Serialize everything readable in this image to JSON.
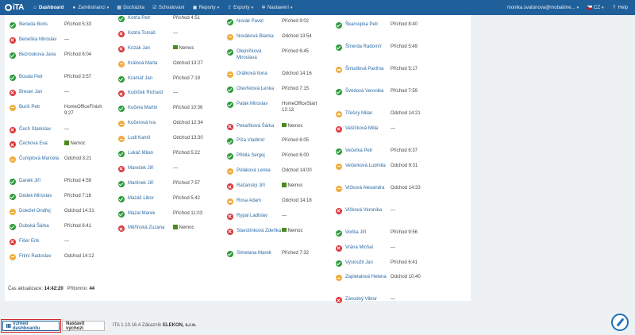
{
  "nav": {
    "logo": "iTA",
    "items": [
      {
        "label": "Dashboard",
        "icon": "home-icon",
        "glyph": "⌂",
        "caret": false
      },
      {
        "label": "Zaměstnanci",
        "icon": "user-icon",
        "glyph": "●",
        "caret": true
      },
      {
        "label": "Docházka",
        "icon": "calendar-icon",
        "glyph": "▦",
        "caret": false
      },
      {
        "label": "Schvalování",
        "icon": "check-square-icon",
        "glyph": "☑",
        "caret": false
      },
      {
        "label": "Reporty",
        "icon": "print-icon",
        "glyph": "▣",
        "caret": true
      },
      {
        "label": "Exporty",
        "icon": "export-icon",
        "glyph": "⇪",
        "caret": true
      },
      {
        "label": "Nastavení",
        "icon": "gear-icon",
        "glyph": "✲",
        "caret": true
      }
    ],
    "user": "monika.svatonova@mobatime...",
    "language": "CZ",
    "help": "Help"
  },
  "columns": [
    [
      {
        "name": "Beneda Boris",
        "status": "ok",
        "value": "Příchod 5:33",
        "tall": false,
        "sick": false
      },
      {
        "name": "Beneška Miroslav",
        "status": "no",
        "value": "—",
        "tall": false,
        "sick": false
      },
      {
        "name": "Bezroukova Jana",
        "status": "ok",
        "value": "Příchod 6:04",
        "tall": true,
        "sick": false
      },
      {
        "name": "Bouda Petr",
        "status": "ok",
        "value": "Příchod 3:57",
        "tall": false,
        "sick": false
      },
      {
        "name": "Breuer Jan",
        "status": "no",
        "value": "—",
        "tall": false,
        "sick": false
      },
      {
        "name": "Buriš Petr",
        "status": "wa",
        "value": "HomeOfficeFinish 9:27",
        "tall": true,
        "sick": false
      },
      {
        "name": "Čech Stanislav",
        "status": "no",
        "value": "—",
        "tall": false,
        "sick": false
      },
      {
        "name": "Čechová Eva",
        "status": "no",
        "value": "Nemoc",
        "tall": false,
        "sick": true
      },
      {
        "name": "Čumplová Marcela",
        "status": "wa",
        "value": "Odchod 3:21",
        "tall": true,
        "sick": false
      },
      {
        "name": "Daněk Jiří",
        "status": "ok",
        "value": "Příchod 4:59",
        "tall": false,
        "sick": false
      },
      {
        "name": "Dedek Miroslav",
        "status": "ok",
        "value": "Příchod 7:16",
        "tall": false,
        "sick": false
      },
      {
        "name": "Doležel Ondřej",
        "status": "wa",
        "value": "Odchod 14:31",
        "tall": false,
        "sick": false
      },
      {
        "name": "Dubská Šárka",
        "status": "ok",
        "value": "Příchod 6:41",
        "tall": false,
        "sick": false
      },
      {
        "name": "Fišer Erik",
        "status": "no",
        "value": "—",
        "tall": false,
        "sick": false
      },
      {
        "name": "Frimí Radoslav",
        "status": "wa",
        "value": "Odchod 14:12",
        "tall": false,
        "sick": false
      }
    ],
    [
      {
        "name": "Kotrla Petr",
        "status": "ok",
        "value": "Příchod 4:51",
        "tall": false,
        "sick": false
      },
      {
        "name": "Kotrla Tomáš",
        "status": "no",
        "value": "—",
        "tall": false,
        "sick": false
      },
      {
        "name": "Kozák Jan",
        "status": "no",
        "value": "Nemoc",
        "tall": false,
        "sick": true
      },
      {
        "name": "Králová Marta",
        "status": "wa",
        "value": "Odchod 13:27",
        "tall": false,
        "sick": false
      },
      {
        "name": "Kramář Jan",
        "status": "ok",
        "value": "Příchod 7:19",
        "tall": false,
        "sick": false
      },
      {
        "name": "Kubíček Richard",
        "status": "no",
        "value": "—",
        "tall": false,
        "sick": false
      },
      {
        "name": "Kučera Martin",
        "status": "ok",
        "value": "Příchod 10:36",
        "tall": false,
        "sick": false
      },
      {
        "name": "Kučerová Iva",
        "status": "wa",
        "value": "Odchod 12:34",
        "tall": false,
        "sick": false
      },
      {
        "name": "Ludl Kamil",
        "status": "wa",
        "value": "Odchod 13:30",
        "tall": false,
        "sick": false
      },
      {
        "name": "Lukáč Milan",
        "status": "ok",
        "value": "Příchod 5:22",
        "tall": false,
        "sick": false
      },
      {
        "name": "Mareček Jiří",
        "status": "no",
        "value": "—",
        "tall": false,
        "sick": false
      },
      {
        "name": "Martinek Jiří",
        "status": "ok",
        "value": "Příchod 7:57",
        "tall": false,
        "sick": false
      },
      {
        "name": "Mazáč Libor",
        "status": "ok",
        "value": "Příchod 5:42",
        "tall": false,
        "sick": false
      },
      {
        "name": "Mazal Marek",
        "status": "ok",
        "value": "Příchod 11:03",
        "tall": false,
        "sick": false
      },
      {
        "name": "Měřínská Zuzana",
        "status": "no",
        "value": "Nemoc",
        "tall": false,
        "sick": true
      }
    ],
    [
      {
        "name": "Novák Pavel",
        "status": "ok",
        "value": "Příchod 9:02",
        "tall": false,
        "sick": false
      },
      {
        "name": "Nováková Blanka",
        "status": "wa",
        "value": "Odchod 13:54",
        "tall": false,
        "sick": false
      },
      {
        "name": "Olejníčková Miroslava",
        "status": "ok",
        "value": "Příchod 6:45",
        "tall": true,
        "sick": false
      },
      {
        "name": "Orálková Ilona",
        "status": "wa",
        "value": "Odchod 14:16",
        "tall": false,
        "sick": false
      },
      {
        "name": "Otevřelová Lenka",
        "status": "ok",
        "value": "Příchod 7:15",
        "tall": false,
        "sick": false
      },
      {
        "name": "Paták Miroslav",
        "status": "ok",
        "value": "HomeOfficeStart 12:13",
        "tall": true,
        "sick": false
      },
      {
        "name": "Pekaříková Šárka",
        "status": "no",
        "value": "Nemoc",
        "tall": false,
        "sick": true
      },
      {
        "name": "Píša Vladimír",
        "status": "ok",
        "value": "Příchod 6:05",
        "tall": false,
        "sick": false
      },
      {
        "name": "Přibila Sergej",
        "status": "ok",
        "value": "Příchod 6:00",
        "tall": false,
        "sick": false
      },
      {
        "name": "Poláková Lenka",
        "status": "wa",
        "value": "Odchod 14:00",
        "tall": false,
        "sick": false
      },
      {
        "name": "Račanský Jiří",
        "status": "no",
        "value": "Nemoc",
        "tall": false,
        "sick": true
      },
      {
        "name": "Rosa Adam",
        "status": "wa",
        "value": "Odchod 14:18",
        "tall": false,
        "sick": false
      },
      {
        "name": "Rypal Ladislav",
        "status": "no",
        "value": "—",
        "tall": false,
        "sick": false
      },
      {
        "name": "Slavotínková Zdeňka",
        "status": "no",
        "value": "Nemoc",
        "tall": true,
        "sick": true
      },
      {
        "name": "Simetana Marek",
        "status": "ok",
        "value": "Příchod 7:32",
        "tall": false,
        "sick": false
      }
    ],
    [
      {
        "name": "Škaroupka Petr",
        "status": "ok",
        "value": "Příchod 8:40",
        "tall": true,
        "sick": false
      },
      {
        "name": "Šmerda Radomír",
        "status": "ok",
        "value": "Příchod 5:49",
        "tall": true,
        "sick": false
      },
      {
        "name": "Šmudlová Pavlína",
        "status": "wa",
        "value": "Příchod 5:17",
        "tall": true,
        "sick": false
      },
      {
        "name": "Švédová Veronika",
        "status": "ok",
        "value": "Příchod 7:59",
        "tall": true,
        "sick": false
      },
      {
        "name": "Třešný Milan",
        "status": "wa",
        "value": "Odchod 14:21",
        "tall": false,
        "sick": false
      },
      {
        "name": "Vašíčková Milla",
        "status": "no",
        "value": "—",
        "tall": true,
        "sick": false
      },
      {
        "name": "Večerka Petr",
        "status": "ok",
        "value": "Příchod 6:37",
        "tall": false,
        "sick": false
      },
      {
        "name": "Večerková Ludmila",
        "status": "wa",
        "value": "Odchod 9:31",
        "tall": true,
        "sick": false
      },
      {
        "name": "Vlčková Alexandra",
        "status": "wa",
        "value": "Odchod 14:33",
        "tall": true,
        "sick": false
      },
      {
        "name": "Vlčková Veronika",
        "status": "no",
        "value": "—",
        "tall": true,
        "sick": false
      },
      {
        "name": "Vorlka Jiří",
        "status": "ok",
        "value": "Příchod 9:56",
        "tall": false,
        "sick": false
      },
      {
        "name": "Vrána Michal",
        "status": "no",
        "value": "—",
        "tall": false,
        "sick": false
      },
      {
        "name": "Vysloužil Jan",
        "status": "ok",
        "value": "Příchod 6:41",
        "tall": false,
        "sick": false
      },
      {
        "name": "Zapletalová Helena",
        "status": "wa",
        "value": "Odchod 10:40",
        "tall": true,
        "sick": false
      },
      {
        "name": "Závodný Viktor",
        "status": "no",
        "value": "—",
        "tall": true,
        "sick": false
      }
    ]
  ],
  "footer": {
    "update_label": "Čas aktualizace:",
    "update_time": "14:42:20",
    "present_label": "Přítomno:",
    "present_count": "44"
  },
  "bottom": {
    "dashboard_view": "Vzhled dashboardu",
    "set_default": "Nastavit výchozí",
    "version_prefix": "ITA 1.10.16.4 Zákazník",
    "customer": "ELEKON, s.r.o."
  },
  "colors": {
    "navbar": "#1f5f9a",
    "ok": "#2e9a3c",
    "absent": "#d9363b",
    "left": "#f0ac3e",
    "sick": "#4b8a1e"
  }
}
